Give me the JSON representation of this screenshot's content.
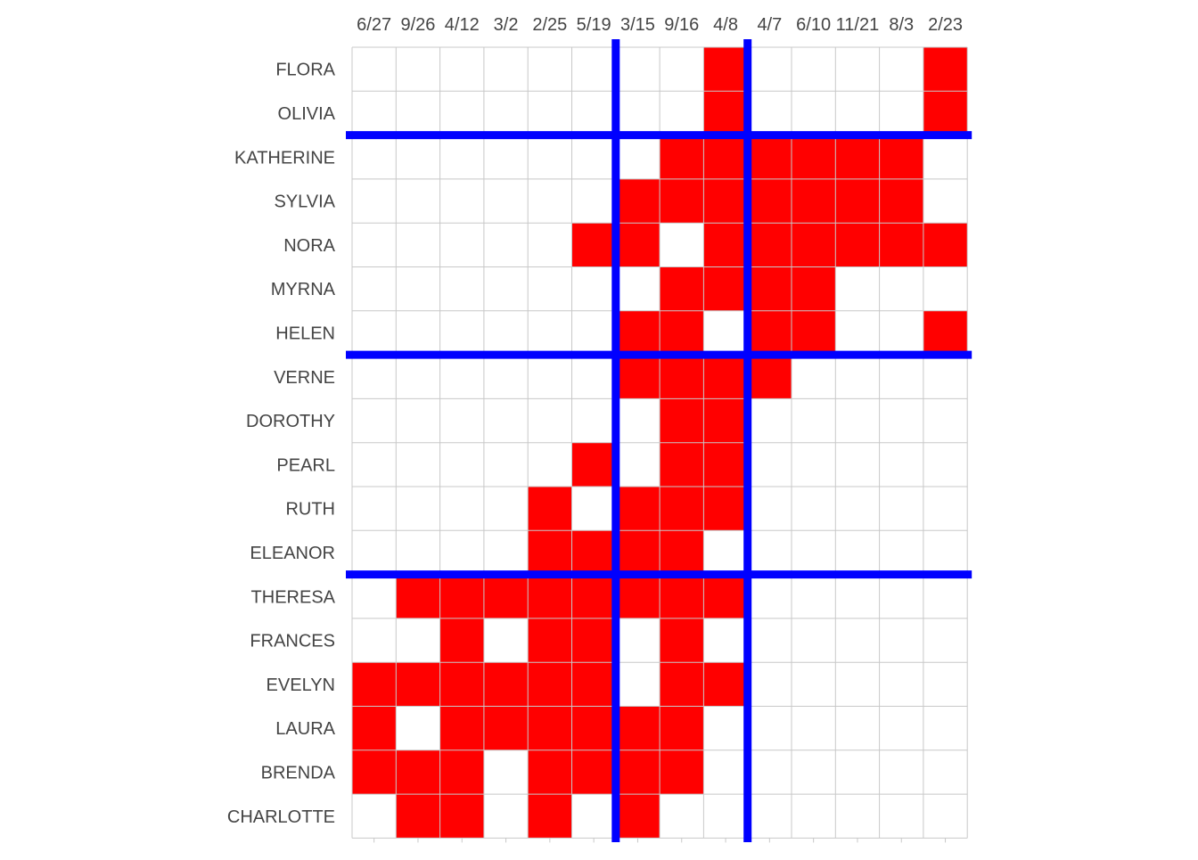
{
  "chart_data": {
    "type": "heatmap",
    "title": "",
    "xlabel": "",
    "ylabel": "",
    "x_ticks": [
      "6/27",
      "9/26",
      "4/12",
      "3/2",
      "2/25",
      "5/19",
      "3/15",
      "9/16",
      "4/8",
      "4/7",
      "6/10",
      "11/21",
      "8/3",
      "2/23"
    ],
    "y_ticks": [
      "FLORA",
      "OLIVIA",
      "KATHERINE",
      "SYLVIA",
      "NORA",
      "MYRNA",
      "HELEN",
      "VERNE",
      "DOROTHY",
      "PEARL",
      "RUTH",
      "ELEANOR",
      "THERESA",
      "FRANCES",
      "EVELYN",
      "LAURA",
      "BRENDA",
      "CHARLOTTE"
    ],
    "values": [
      [
        0,
        0,
        0,
        0,
        0,
        0,
        0,
        0,
        1,
        0,
        0,
        0,
        0,
        1
      ],
      [
        0,
        0,
        0,
        0,
        0,
        0,
        0,
        0,
        1,
        0,
        0,
        0,
        0,
        1
      ],
      [
        0,
        0,
        0,
        0,
        0,
        0,
        0,
        1,
        1,
        1,
        1,
        1,
        1,
        0
      ],
      [
        0,
        0,
        0,
        0,
        0,
        0,
        1,
        1,
        1,
        1,
        1,
        1,
        1,
        0
      ],
      [
        0,
        0,
        0,
        0,
        0,
        1,
        1,
        0,
        1,
        1,
        1,
        1,
        1,
        1
      ],
      [
        0,
        0,
        0,
        0,
        0,
        0,
        0,
        1,
        1,
        1,
        1,
        0,
        0,
        0
      ],
      [
        0,
        0,
        0,
        0,
        0,
        0,
        1,
        1,
        0,
        1,
        1,
        0,
        0,
        1
      ],
      [
        0,
        0,
        0,
        0,
        0,
        0,
        1,
        1,
        1,
        1,
        0,
        0,
        0,
        0
      ],
      [
        0,
        0,
        0,
        0,
        0,
        0,
        0,
        1,
        1,
        0,
        0,
        0,
        0,
        0
      ],
      [
        0,
        0,
        0,
        0,
        0,
        1,
        0,
        1,
        1,
        0,
        0,
        0,
        0,
        0
      ],
      [
        0,
        0,
        0,
        0,
        1,
        0,
        1,
        1,
        1,
        0,
        0,
        0,
        0,
        0
      ],
      [
        0,
        0,
        0,
        0,
        1,
        1,
        1,
        1,
        0,
        0,
        0,
        0,
        0,
        0
      ],
      [
        0,
        1,
        1,
        1,
        1,
        1,
        1,
        1,
        1,
        0,
        0,
        0,
        0,
        0
      ],
      [
        0,
        0,
        1,
        0,
        1,
        1,
        0,
        1,
        0,
        0,
        0,
        0,
        0,
        0
      ],
      [
        1,
        1,
        1,
        1,
        1,
        1,
        0,
        1,
        1,
        0,
        0,
        0,
        0,
        0
      ],
      [
        1,
        0,
        1,
        1,
        1,
        1,
        1,
        1,
        0,
        0,
        0,
        0,
        0,
        0
      ],
      [
        1,
        1,
        1,
        0,
        1,
        1,
        1,
        1,
        0,
        0,
        0,
        0,
        0,
        0
      ],
      [
        0,
        1,
        1,
        0,
        1,
        0,
        1,
        0,
        0,
        0,
        0,
        0,
        0,
        0
      ]
    ],
    "vertical_dividers_after_column": [
      6,
      9
    ],
    "horizontal_dividers_after_row": [
      2,
      7,
      12
    ],
    "grid": true,
    "colors": {
      "filled": "#ff0000",
      "empty": "#ffffff",
      "divider": "#0000ff",
      "grid": "#c8c8c8",
      "text": "#444444"
    }
  }
}
